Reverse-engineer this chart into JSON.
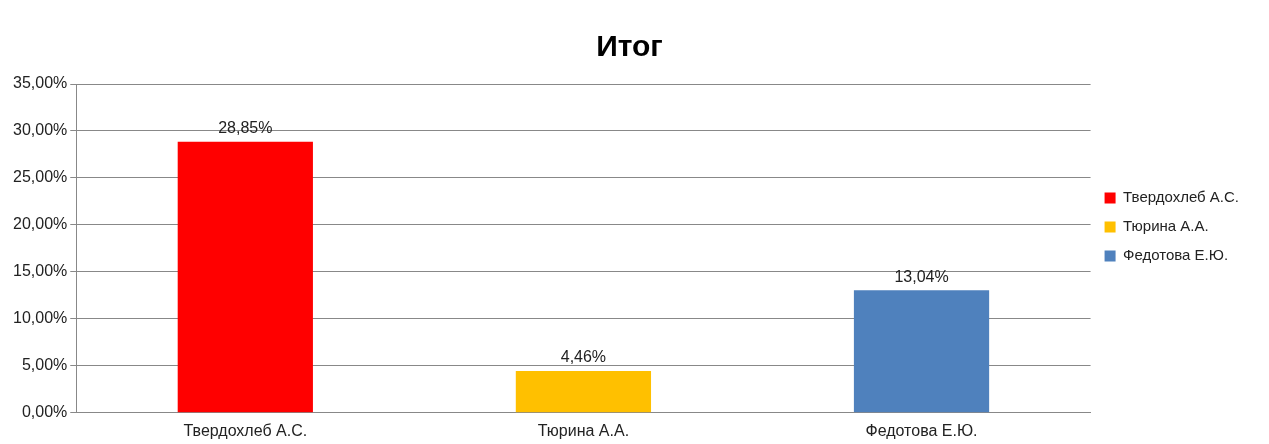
{
  "chart_data": {
    "type": "bar",
    "title": "Итог",
    "categories": [
      "Твердохлеб А.С.",
      "Тюрина А.А.",
      "Федотова Е.Ю."
    ],
    "series": [
      {
        "name": "Твердохлеб А.С.",
        "color": "#ff0000",
        "values": [
          28.85,
          null,
          null
        ],
        "value_labels": [
          "28,85%",
          null,
          null
        ]
      },
      {
        "name": "Тюрина А.А.",
        "color": "#ffc000",
        "values": [
          null,
          4.46,
          null
        ],
        "value_labels": [
          null,
          "4,46%",
          null
        ]
      },
      {
        "name": "Федотова Е.Ю.",
        "color": "#4f81bd",
        "values": [
          null,
          null,
          13.04
        ],
        "value_labels": [
          null,
          null,
          "13,04%"
        ]
      }
    ],
    "ylim": [
      0,
      35
    ],
    "yticks": [
      {
        "value": 0,
        "label": "0,00%"
      },
      {
        "value": 5,
        "label": "5,00%"
      },
      {
        "value": 10,
        "label": "10,00%"
      },
      {
        "value": 15,
        "label": "15,00%"
      },
      {
        "value": 20,
        "label": "20,00%"
      },
      {
        "value": 25,
        "label": "25,00%"
      },
      {
        "value": 30,
        "label": "30,00%"
      },
      {
        "value": 35,
        "label": "35,00%"
      }
    ],
    "grid": "y",
    "legend": "right"
  }
}
